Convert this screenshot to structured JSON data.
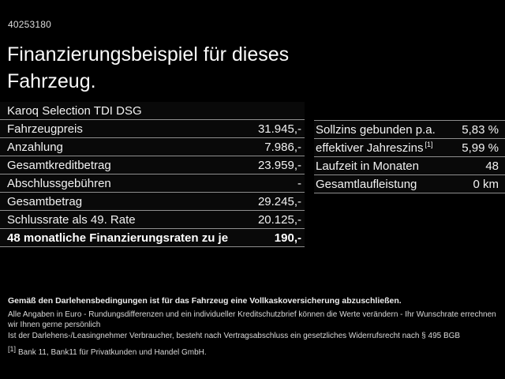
{
  "page": {
    "id_number": "40253180",
    "title": "Finanzierungsbeispiel für dieses Fahrzeug."
  },
  "finance_table": {
    "model": "Karoq Selection TDI DSG",
    "rows": [
      {
        "label": "Fahrzeugpreis",
        "value": "31.945,-"
      },
      {
        "label": "Anzahlung",
        "value": "7.986,-"
      },
      {
        "label": "Gesamtkreditbetrag",
        "value": "23.959,-"
      },
      {
        "label": "Abschlussgebühren",
        "value": "-"
      },
      {
        "label": "Gesamtbetrag",
        "value": "29.245,-"
      },
      {
        "label": "Schlussrate als 49. Rate",
        "value": "20.125,-"
      },
      {
        "label": "48 monatliche Finanzierungsraten zu je",
        "value": "190,-"
      }
    ]
  },
  "conditions_table": {
    "rows": [
      {
        "label": "Sollzins gebunden p.a.",
        "sup": "",
        "value": "5,83 %"
      },
      {
        "label": "effektiver Jahreszins",
        "sup": "[1]",
        "value": "5,99 %"
      },
      {
        "label": "Laufzeit in Monaten",
        "sup": "",
        "value": "48"
      },
      {
        "label": "Gesamtlaufleistung",
        "sup": "",
        "value": "0 km"
      }
    ]
  },
  "footer": {
    "insurance_note": "Gemäß den Darlehensbedingungen ist für das Fahrzeug eine Vollkaskoversicherung abzuschließen.",
    "line1": "Alle Angaben in Euro - Rundungsdifferenzen und ein individueller Kreditschutzbrief können die Werte verändern - Ihr Wunschrate errechnen wir Ihnen gerne persönlich",
    "line2": "Ist der Darlehens-/Leasingnehmer Verbraucher, besteht nach Vertragsabschluss ein gesetzliches Widerrufsrecht nach § 495 BGB",
    "footnote_marker": "[1]",
    "footnote_text": "Bank 11, Bank11 für Privatkunden und Handel GmbH."
  },
  "colors": {
    "background": "#000000",
    "text": "#f2f2f2",
    "divider": "#8f8f8f"
  }
}
